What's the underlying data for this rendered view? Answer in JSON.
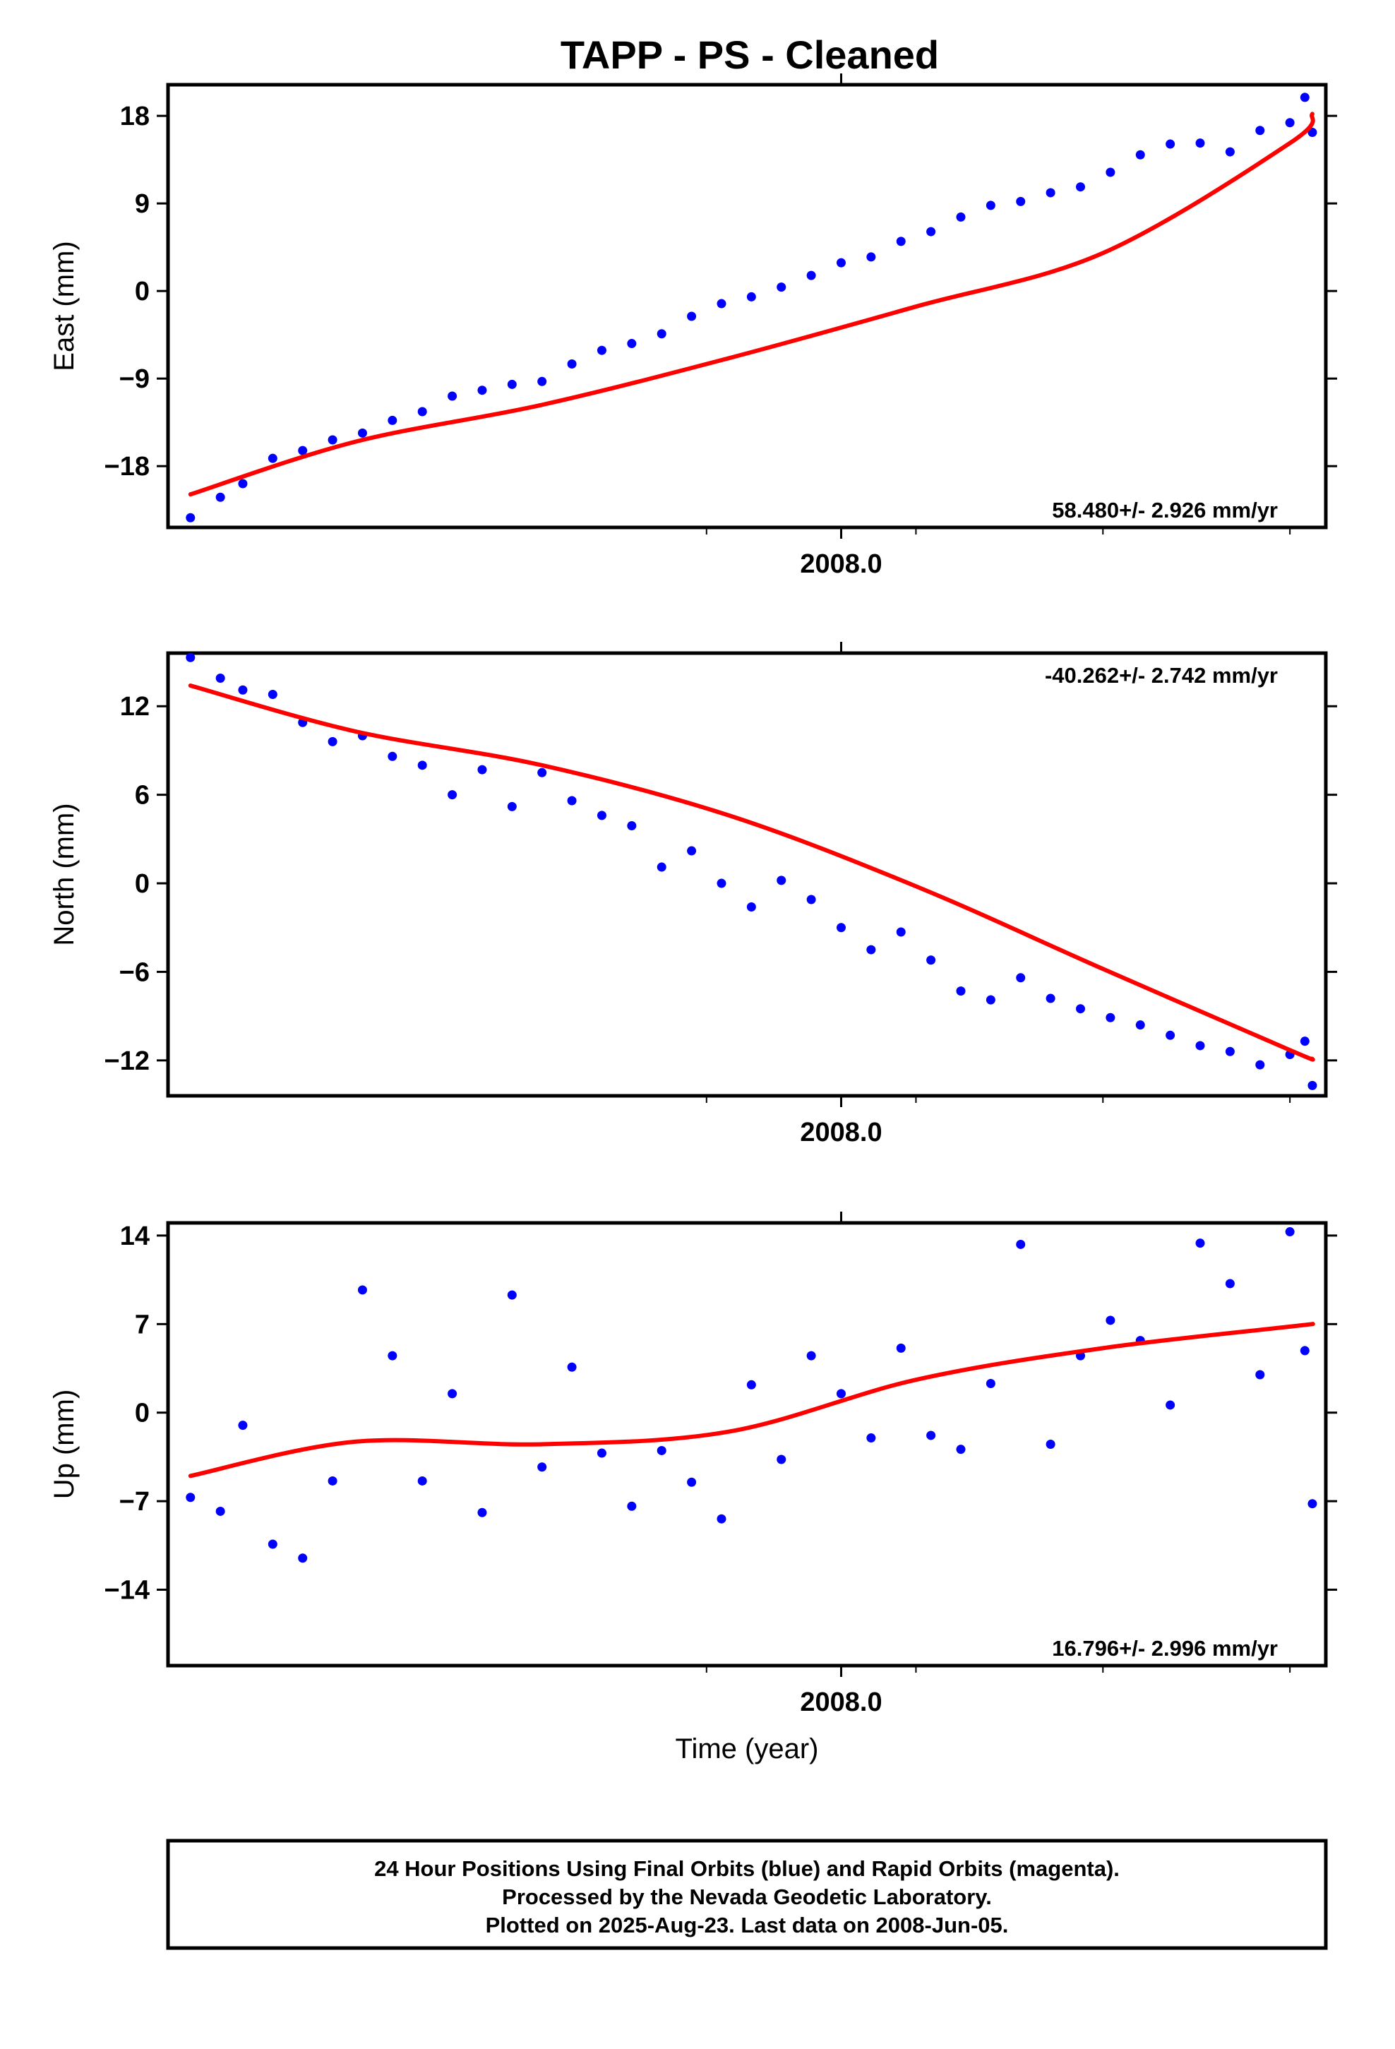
{
  "page": {
    "title": "TAPP  - PS - Cleaned",
    "xlabel": "Time (year)",
    "footer": [
      "24 Hour Positions Using Final Orbits (blue) and Rapid Orbits (magenta).",
      "Processed by the Nevada Geodetic Laboratory.",
      "Plotted on 2025-Aug-23. Last data on 2008-Jun-05."
    ]
  },
  "colors": {
    "points": "#0000ff",
    "fit": "#ff0000",
    "frame": "#000000"
  },
  "chart_data": [
    {
      "type": "scatter",
      "ylabel": "East (mm)",
      "rate": "58.480+/- 2.926 mm/yr",
      "x_ticks": [
        2008.0
      ],
      "x_tick_labels": [
        "2008.0"
      ],
      "xlim": [
        2007.1,
        2008.648
      ],
      "ylim": [
        -24.3,
        21.2
      ],
      "yticks": [
        -18,
        -9,
        0,
        9,
        18
      ],
      "fit": {
        "x": [
          2007.13,
          2007.35,
          2007.6,
          2007.85,
          2008.1,
          2008.35,
          2008.6,
          2008.63
        ],
        "y": [
          -20.9,
          -15.5,
          -11.7,
          -6.9,
          -1.6,
          3.9,
          15.2,
          18.2
        ]
      },
      "series": [
        {
          "x": [
            2007.13,
            2007.17,
            2007.2,
            2007.24,
            2007.28,
            2007.32,
            2007.36,
            2007.4,
            2007.44,
            2007.48,
            2007.52,
            2007.56,
            2007.6,
            2007.64,
            2007.68,
            2007.72,
            2007.76,
            2007.8,
            2007.84,
            2007.88,
            2007.92,
            2007.96,
            2008.0,
            2008.04,
            2008.08,
            2008.12,
            2008.16,
            2008.2,
            2008.24,
            2008.28,
            2008.32,
            2008.36,
            2008.4,
            2008.44,
            2008.48,
            2008.52,
            2008.56,
            2008.6,
            2008.62,
            2008.63
          ],
          "y": [
            -23.3,
            -21.2,
            -19.8,
            -17.2,
            -16.4,
            -15.3,
            -14.6,
            -13.3,
            -12.4,
            -10.8,
            -10.2,
            -9.6,
            -9.3,
            -7.5,
            -6.1,
            -5.4,
            -4.4,
            -2.6,
            -1.3,
            -0.6,
            0.4,
            1.6,
            2.9,
            3.5,
            5.1,
            6.1,
            7.6,
            8.8,
            9.2,
            10.1,
            10.7,
            12.2,
            14.0,
            15.1,
            15.2,
            14.3,
            16.5,
            17.3,
            19.9,
            16.3
          ]
        }
      ]
    },
    {
      "type": "scatter",
      "ylabel": "North (mm)",
      "rate": "-40.262+/- 2.742 mm/yr",
      "x_ticks": [
        2008.0
      ],
      "x_tick_labels": [
        "2008.0"
      ],
      "xlim": [
        2007.1,
        2008.648
      ],
      "ylim": [
        -14.4,
        15.6
      ],
      "yticks": [
        -12,
        -6,
        0,
        6,
        12
      ],
      "fit": {
        "x": [
          2007.13,
          2007.35,
          2007.6,
          2007.85,
          2008.1,
          2008.35,
          2008.6,
          2008.63
        ],
        "y": [
          13.4,
          10.3,
          8.0,
          4.6,
          -0.2,
          -5.8,
          -11.3,
          -11.9
        ]
      },
      "series": [
        {
          "x": [
            2007.13,
            2007.17,
            2007.2,
            2007.24,
            2007.28,
            2007.32,
            2007.36,
            2007.4,
            2007.44,
            2007.48,
            2007.52,
            2007.56,
            2007.6,
            2007.64,
            2007.68,
            2007.72,
            2007.76,
            2007.8,
            2007.84,
            2007.88,
            2007.92,
            2007.96,
            2008.0,
            2008.04,
            2008.08,
            2008.12,
            2008.16,
            2008.2,
            2008.24,
            2008.28,
            2008.32,
            2008.36,
            2008.4,
            2008.44,
            2008.48,
            2008.52,
            2008.56,
            2008.6,
            2008.62,
            2008.63
          ],
          "y": [
            15.3,
            13.9,
            13.1,
            12.8,
            10.9,
            9.6,
            10.0,
            8.6,
            8.0,
            6.0,
            7.7,
            5.2,
            7.5,
            5.6,
            4.6,
            3.9,
            1.1,
            2.2,
            0.0,
            -1.6,
            0.2,
            -1.1,
            -3.0,
            -4.5,
            -3.3,
            -5.2,
            -7.3,
            -7.9,
            -6.4,
            -7.8,
            -8.5,
            -9.1,
            -9.6,
            -10.3,
            -11.0,
            -11.4,
            -12.3,
            -11.6,
            -10.7,
            -13.7
          ]
        }
      ]
    },
    {
      "type": "scatter",
      "ylabel": "Up (mm)",
      "rate": "16.796+/- 2.996 mm/yr",
      "x_ticks": [
        2008.0
      ],
      "x_tick_labels": [
        "2008.0"
      ],
      "xlim": [
        2007.1,
        2008.648
      ],
      "ylim": [
        -20.0,
        15.0
      ],
      "yticks": [
        -14,
        -7,
        0,
        7,
        14
      ],
      "fit": {
        "x": [
          2007.13,
          2007.35,
          2007.6,
          2007.85,
          2008.1,
          2008.35,
          2008.6,
          2008.63
        ],
        "y": [
          -5.0,
          -2.3,
          -2.5,
          -1.5,
          2.6,
          5.1,
          6.8,
          7.0
        ]
      },
      "series": [
        {
          "x": [
            2007.13,
            2007.17,
            2007.2,
            2007.24,
            2007.28,
            2007.32,
            2007.36,
            2007.4,
            2007.44,
            2007.48,
            2007.52,
            2007.56,
            2007.6,
            2007.64,
            2007.68,
            2007.72,
            2007.76,
            2007.8,
            2007.84,
            2007.88,
            2007.92,
            2007.96,
            2008.0,
            2008.04,
            2008.08,
            2008.12,
            2008.16,
            2008.2,
            2008.24,
            2008.28,
            2008.32,
            2008.36,
            2008.4,
            2008.44,
            2008.48,
            2008.52,
            2008.56,
            2008.6,
            2008.62,
            2008.63
          ],
          "y": [
            -6.7,
            -7.8,
            -1.0,
            -10.4,
            -11.5,
            -5.4,
            9.7,
            4.5,
            -5.4,
            1.5,
            -7.9,
            9.3,
            -4.3,
            3.6,
            -3.2,
            -7.4,
            -3.0,
            -5.5,
            -8.4,
            2.2,
            -3.7,
            4.5,
            1.5,
            -2.0,
            5.1,
            -1.8,
            -2.9,
            2.3,
            13.3,
            -2.5,
            4.5,
            7.3,
            5.7,
            0.6,
            13.4,
            10.2,
            3.0,
            14.3,
            4.9,
            -7.2
          ]
        }
      ]
    }
  ]
}
